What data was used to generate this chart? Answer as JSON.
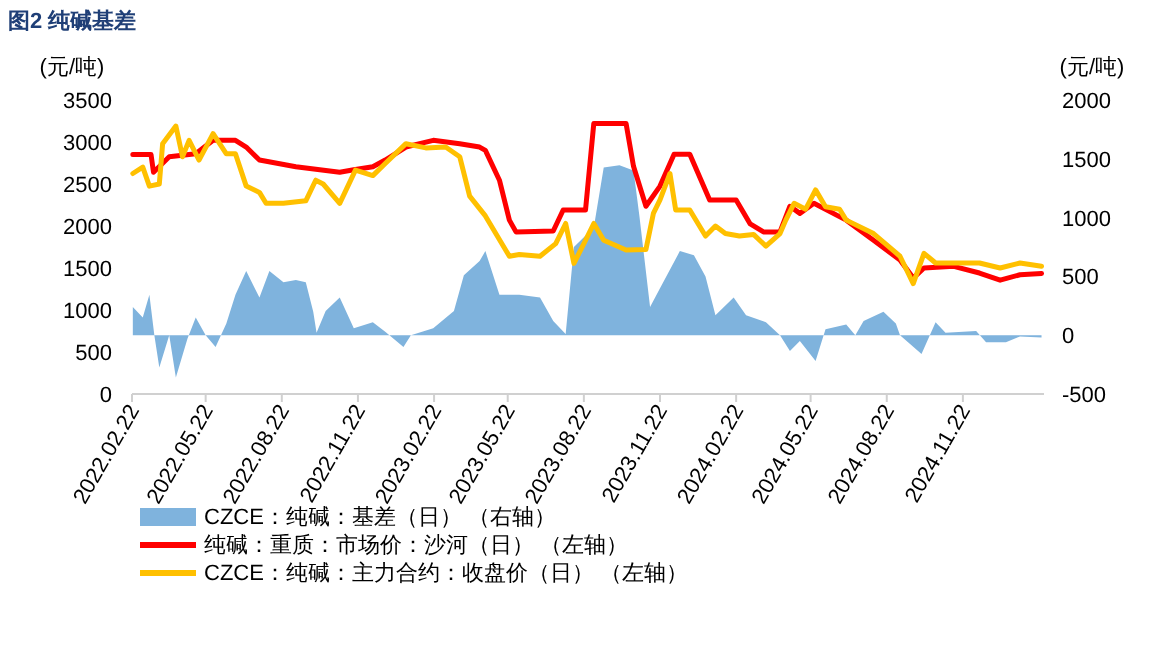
{
  "chart_data": {
    "type": "line",
    "title": "图2 纯碱基差",
    "ylabel": "(元/吨)",
    "y2label": "(元/吨)",
    "legend": "bottom",
    "xlim": [
      "2022-02-22",
      "2025-02-28"
    ],
    "xticks": [
      {
        "value": "2022-02-22",
        "label": "2022.02.22"
      },
      {
        "value": "2022-05-22",
        "label": "2022.05.22"
      },
      {
        "value": "2022-08-22",
        "label": "2022.08.22"
      },
      {
        "value": "2022-11-22",
        "label": "2022.11.22"
      },
      {
        "value": "2023-02-22",
        "label": "2023.02.22"
      },
      {
        "value": "2023-05-22",
        "label": "2023.05.22"
      },
      {
        "value": "2023-08-22",
        "label": "2023.08.22"
      },
      {
        "value": "2023-11-22",
        "label": "2023.11.22"
      },
      {
        "value": "2024-02-22",
        "label": "2024.02.22"
      },
      {
        "value": "2024-05-22",
        "label": "2024.05.22"
      },
      {
        "value": "2024-08-22",
        "label": "2024.08.22"
      },
      {
        "value": "2024-11-22",
        "label": "2024.11.22"
      }
    ],
    "ylim": [
      0,
      3500
    ],
    "yticks": [
      0,
      500,
      1000,
      1500,
      2000,
      2500,
      3000,
      3500
    ],
    "y2lim": [
      -500,
      2000
    ],
    "y2ticks": [
      -500,
      0,
      500,
      1000,
      1500,
      2000
    ],
    "series": [
      {
        "name": "CZCE：纯碱：基差（日）    （右轴）",
        "type": "area",
        "axis": "y2",
        "color": "#7fb3dd",
        "x": [
          "2022-02-23",
          "2022-03-07",
          "2022-03-15",
          "2022-03-21",
          "2022-03-27",
          "2022-04-08",
          "2022-04-16",
          "2022-04-30",
          "2022-05-10",
          "2022-05-22",
          "2022-06-03",
          "2022-06-16",
          "2022-06-27",
          "2022-07-10",
          "2022-07-26",
          "2022-08-07",
          "2022-08-24",
          "2022-09-08",
          "2022-09-20",
          "2022-09-29",
          "2022-10-03",
          "2022-10-14",
          "2022-10-31",
          "2022-11-17",
          "2022-12-10",
          "2022-12-25",
          "2023-01-16",
          "2023-01-25",
          "2023-02-21",
          "2023-03-18",
          "2023-03-30",
          "2023-04-18",
          "2023-04-25",
          "2023-05-12",
          "2023-06-05",
          "2023-06-30",
          "2023-07-16",
          "2023-07-31",
          "2023-08-10",
          "2023-09-03",
          "2023-09-15",
          "2023-10-04",
          "2023-10-21",
          "2023-10-28",
          "2023-11-10",
          "2023-11-22",
          "2023-12-16",
          "2024-01-02",
          "2024-01-16",
          "2024-01-28",
          "2024-02-19",
          "2024-03-05",
          "2024-03-29",
          "2024-04-15",
          "2024-04-27",
          "2024-05-09",
          "2024-05-28",
          "2024-06-09",
          "2024-07-04",
          "2024-07-15",
          "2024-07-25",
          "2024-08-18",
          "2024-09-02",
          "2024-09-07",
          "2024-10-03",
          "2024-10-20",
          "2024-11-01",
          "2024-12-08",
          "2024-12-20",
          "2025-01-13",
          "2025-01-30",
          "2025-02-25"
        ],
        "values": [
          240,
          150,
          345,
          0,
          -275,
          0,
          -360,
          -30,
          150,
          0,
          -100,
          100,
          345,
          545,
          320,
          545,
          450,
          470,
          450,
          200,
          20,
          205,
          320,
          60,
          110,
          30,
          -100,
          0,
          60,
          205,
          510,
          630,
          715,
          345,
          345,
          320,
          120,
          10,
          750,
          915,
          1425,
          1445,
          1400,
          1020,
          240,
          400,
          715,
          680,
          500,
          170,
          320,
          170,
          110,
          0,
          -135,
          -50,
          -220,
          50,
          90,
          0,
          120,
          200,
          100,
          0,
          -160,
          110,
          20,
          35,
          -60,
          -60,
          -10,
          -20
        ]
      },
      {
        "name": "纯碱：重质：市场价：沙河（日）    （左轴）",
        "color": "#ff0000",
        "x": [
          "2022-02-23",
          "2022-03-17",
          "2022-03-20",
          "2022-04-08",
          "2022-05-10",
          "2022-05-31",
          "2022-06-27",
          "2022-07-10",
          "2022-07-26",
          "2022-09-08",
          "2022-10-31",
          "2022-11-17",
          "2022-12-10",
          "2022-12-25",
          "2023-01-19",
          "2023-02-21",
          "2023-03-25",
          "2023-04-18",
          "2023-04-25",
          "2023-05-12",
          "2023-05-24",
          "2023-06-01",
          "2023-07-16",
          "2023-07-28",
          "2023-08-24",
          "2023-09-03",
          "2023-10-12",
          "2023-10-21",
          "2023-11-05",
          "2023-11-22",
          "2023-12-09",
          "2023-12-28",
          "2024-01-21",
          "2024-02-22",
          "2024-03-10",
          "2024-03-26",
          "2024-04-15",
          "2024-04-27",
          "2024-05-09",
          "2024-05-26",
          "2024-07-04",
          "2024-08-06",
          "2024-09-07",
          "2024-09-23",
          "2024-10-06",
          "2024-11-11",
          "2024-12-12",
          "2025-01-06",
          "2025-01-30",
          "2025-02-25"
        ],
        "values": [
          2850,
          2850,
          2640,
          2825,
          2860,
          3020,
          3020,
          2940,
          2785,
          2705,
          2640,
          2670,
          2705,
          2785,
          2940,
          3020,
          2980,
          2940,
          2900,
          2545,
          2070,
          1930,
          1940,
          2190,
          2190,
          3220,
          3220,
          2710,
          2235,
          2475,
          2855,
          2855,
          2310,
          2310,
          2025,
          1930,
          1930,
          2235,
          2150,
          2270,
          2070,
          1830,
          1595,
          1380,
          1500,
          1520,
          1440,
          1355,
          1420,
          1435
        ]
      },
      {
        "name": "CZCE：纯碱：主力合约：收盘价（日）    （左轴）",
        "color": "#ffc000",
        "x": [
          "2022-02-23",
          "2022-03-07",
          "2022-03-15",
          "2022-03-27",
          "2022-03-31",
          "2022-04-16",
          "2022-04-24",
          "2022-05-02",
          "2022-05-14",
          "2022-05-31",
          "2022-06-16",
          "2022-06-27",
          "2022-07-10",
          "2022-07-26",
          "2022-08-03",
          "2022-08-24",
          "2022-09-20",
          "2022-10-02",
          "2022-10-11",
          "2022-10-31",
          "2022-11-19",
          "2022-12-10",
          "2022-12-25",
          "2023-01-19",
          "2023-02-12",
          "2023-03-08",
          "2023-03-25",
          "2023-04-06",
          "2023-04-25",
          "2023-05-24",
          "2023-06-05",
          "2023-06-30",
          "2023-07-19",
          "2023-07-31",
          "2023-08-10",
          "2023-08-24",
          "2023-09-03",
          "2023-09-15",
          "2023-10-12",
          "2023-11-05",
          "2023-11-14",
          "2023-11-22",
          "2023-12-04",
          "2023-12-11",
          "2023-12-28",
          "2024-01-16",
          "2024-01-28",
          "2024-02-09",
          "2024-02-26",
          "2024-03-14",
          "2024-03-29",
          "2024-04-15",
          "2024-04-22",
          "2024-05-02",
          "2024-05-16",
          "2024-05-28",
          "2024-06-09",
          "2024-06-26",
          "2024-07-04",
          "2024-08-06",
          "2024-09-07",
          "2024-09-23",
          "2024-10-06",
          "2024-10-20",
          "2024-12-12",
          "2025-01-06",
          "2025-01-30",
          "2025-02-25"
        ],
        "values": [
          2625,
          2700,
          2475,
          2500,
          2980,
          3190,
          2825,
          3020,
          2785,
          3100,
          2860,
          2860,
          2475,
          2400,
          2270,
          2270,
          2300,
          2545,
          2500,
          2270,
          2665,
          2600,
          2745,
          2980,
          2930,
          2940,
          2825,
          2355,
          2120,
          1640,
          1660,
          1640,
          1790,
          2030,
          1555,
          1830,
          2030,
          1830,
          1715,
          1720,
          2150,
          2310,
          2625,
          2190,
          2190,
          1880,
          2000,
          1910,
          1880,
          1900,
          1760,
          1910,
          2070,
          2270,
          2200,
          2430,
          2230,
          2200,
          2070,
          1910,
          1640,
          1315,
          1675,
          1560,
          1560,
          1500,
          1560,
          1520
        ]
      }
    ]
  }
}
